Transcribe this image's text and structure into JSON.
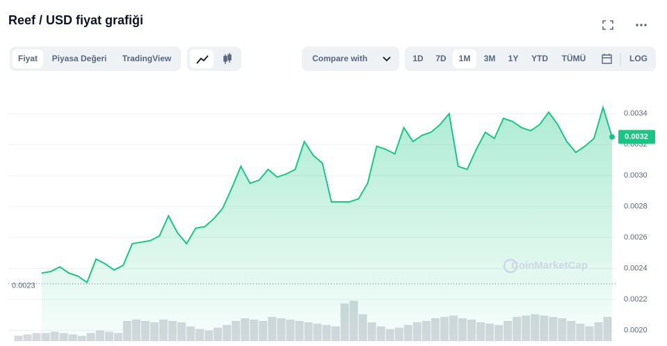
{
  "header": {
    "title": "Reef / USD fiyat grafiği"
  },
  "toolbar": {
    "tabs": [
      "Fiyat",
      "Piyasa Değeri",
      "TradingView"
    ],
    "compare": "Compare with",
    "ranges": [
      "1D",
      "7D",
      "1M",
      "3M",
      "1Y",
      "YTD",
      "TÜMÜ"
    ],
    "log": "LOG",
    "selected_range": "1M"
  },
  "watermark": "CoinMarketCap",
  "chart_data": {
    "type": "line",
    "series": [
      {
        "name": "Reef / USD",
        "color": "#16c784",
        "values": [
          0.00237,
          0.00238,
          0.00241,
          0.00237,
          0.00235,
          0.00231,
          0.00246,
          0.00243,
          0.00239,
          0.00242,
          0.00256,
          0.00257,
          0.00258,
          0.00261,
          0.00274,
          0.00263,
          0.00256,
          0.00266,
          0.00267,
          0.00272,
          0.00279,
          0.00292,
          0.00306,
          0.00295,
          0.00297,
          0.00304,
          0.00299,
          0.00301,
          0.00304,
          0.00322,
          0.00313,
          0.00308,
          0.00283,
          0.00283,
          0.00283,
          0.00285,
          0.00295,
          0.00319,
          0.00317,
          0.00314,
          0.00331,
          0.00322,
          0.00326,
          0.00328,
          0.00333,
          0.0034,
          0.00306,
          0.00304,
          0.00317,
          0.00328,
          0.00324,
          0.00337,
          0.00335,
          0.00331,
          0.00329,
          0.00333,
          0.00341,
          0.00333,
          0.00322,
          0.00315,
          0.00319,
          0.00324,
          0.00344,
          0.00325
        ]
      }
    ],
    "volume": {
      "color": "#d6d9de",
      "values": [
        8,
        10,
        12,
        12,
        14,
        12,
        10,
        8,
        12,
        16,
        14,
        12,
        30,
        32,
        30,
        28,
        32,
        30,
        28,
        22,
        18,
        16,
        20,
        24,
        30,
        34,
        32,
        30,
        36,
        34,
        32,
        30,
        28,
        26,
        24,
        22,
        56,
        60,
        40,
        28,
        22,
        18,
        20,
        24,
        28,
        30,
        34,
        36,
        38,
        34,
        32,
        28,
        26,
        24,
        30,
        36,
        38,
        40,
        38,
        36,
        34,
        30,
        26,
        22,
        28,
        36
      ]
    },
    "ylim": [
      0.00193,
      0.00355
    ],
    "yticks": [
      0.0034,
      0.0032,
      {
        "value": 0.003,
        "label": "0.0030"
      },
      0.0028,
      0.0026,
      0.0024,
      0.0022,
      {
        "value": 0.002,
        "label": "0.0020"
      }
    ],
    "grid": true,
    "min_label": 0.0023,
    "last_label": 0.0032
  }
}
